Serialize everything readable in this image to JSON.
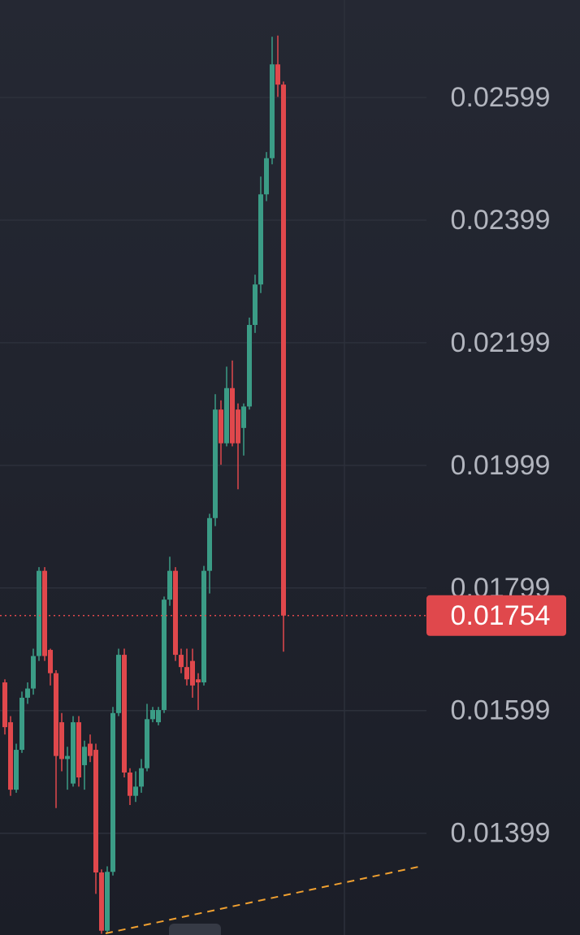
{
  "chart_data": {
    "type": "candlestick",
    "open": [
      0.01645,
      0.0158,
      0.0147,
      0.01535,
      0.0162,
      0.01635,
      0.01688,
      0.01827,
      0.01698,
      0.0166,
      0.0158,
      0.0152,
      0.0148,
      0.0158,
      0.0151,
      0.01545,
      0.01535,
      0.01335,
      0.0124,
      0.01336,
      0.01595,
      0.0169,
      0.01498,
      0.0146,
      0.01475,
      0.01505,
      0.01585,
      0.0158,
      0.016,
      0.0178,
      0.01827,
      0.0169,
      0.0167,
      0.0168,
      0.0165,
      0.01645,
      0.01827,
      0.01913,
      0.0209,
      0.02035,
      0.02125,
      0.0209,
      0.0206,
      0.02095,
      0.02228,
      0.02294,
      0.02441,
      0.025,
      0.02653,
      0.0262
    ],
    "high": [
      0.0165,
      0.0159,
      0.01545,
      0.0163,
      0.01645,
      0.017,
      0.01833,
      0.01833,
      0.017,
      0.01665,
      0.01595,
      0.0154,
      0.0159,
      0.0159,
      0.0155,
      0.0156,
      0.01545,
      0.0134,
      0.01345,
      0.01605,
      0.017,
      0.017,
      0.01505,
      0.015,
      0.0152,
      0.0161,
      0.01605,
      0.01605,
      0.01785,
      0.0185,
      0.01833,
      0.017,
      0.017,
      0.017,
      0.0166,
      0.01835,
      0.0192,
      0.02115,
      0.02105,
      0.0216,
      0.0217,
      0.021,
      0.021,
      0.0224,
      0.0231,
      0.0247,
      0.0251,
      0.02698,
      0.027,
      0.02625
    ],
    "low": [
      0.0156,
      0.0146,
      0.01465,
      0.0153,
      0.0161,
      0.01625,
      0.0168,
      0.0168,
      0.0164,
      0.0144,
      0.015,
      0.0147,
      0.01475,
      0.01475,
      0.0147,
      0.01515,
      0.013,
      0.01235,
      0.01235,
      0.0133,
      0.0159,
      0.0149,
      0.01445,
      0.0145,
      0.01465,
      0.015,
      0.0158,
      0.01575,
      0.01595,
      0.0177,
      0.0168,
      0.0166,
      0.0164,
      0.0162,
      0.016,
      0.0164,
      0.0179,
      0.019,
      0.02,
      0.0203,
      0.0203,
      0.0196,
      0.02015,
      0.0209,
      0.02215,
      0.0228,
      0.0243,
      0.0249,
      0.026,
      0.01695
    ],
    "close": [
      0.01572,
      0.0147,
      0.01535,
      0.0162,
      0.01635,
      0.01688,
      0.01827,
      0.01688,
      0.0166,
      0.01525,
      0.0152,
      0.01525,
      0.0158,
      0.0149,
      0.0154,
      0.01525,
      0.01335,
      0.0124,
      0.01336,
      0.01595,
      0.0169,
      0.01498,
      0.0146,
      0.01475,
      0.01505,
      0.01585,
      0.016,
      0.016,
      0.0178,
      0.01827,
      0.0169,
      0.0167,
      0.0165,
      0.0164,
      0.01645,
      0.01827,
      0.01913,
      0.0209,
      0.02035,
      0.02125,
      0.02035,
      0.02035,
      0.02095,
      0.02228,
      0.02294,
      0.02441,
      0.025,
      0.02653,
      0.0262,
      0.01754
    ],
    "up_color": "#3b9c86",
    "down_color": "#e0484c",
    "ylim": [
      0.01233,
      0.02758
    ],
    "yticks": [
      0.02599,
      0.02399,
      0.02199,
      0.01999,
      0.01799,
      0.01599,
      0.01399
    ],
    "grid": true,
    "last_price": 0.01754
  }
}
